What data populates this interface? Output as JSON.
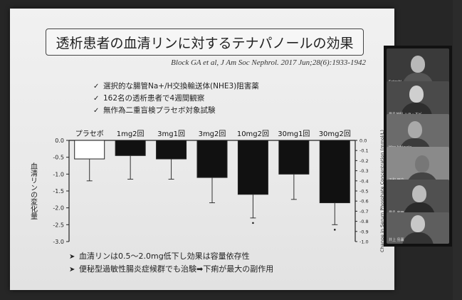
{
  "slide": {
    "title": "透析患者の血清リンに対するテナパノールの効果",
    "citation": "Block GA et al, J Am Soc Nephrol. 2017 Jun;28(6):1933-1942",
    "bullets": [
      "選択的な腸管Na+/H交換輸送体(NHE3)阻害薬",
      "162名の透析患者で4週間観察",
      "無作為二重盲検プラセボ対象試験"
    ],
    "bullet_mark": "✓",
    "notes": [
      "血清リンは0.5～2.0mg低下し効果は容量依存性",
      "便秘型過敏性腸炎症候群でも治験➡下痢が最大の副作用"
    ],
    "note_mark": "➤"
  },
  "chart_data": {
    "type": "bar",
    "categories": [
      "プラセボ",
      "1mg2回",
      "3mg1回",
      "3mg2回",
      "10mg2回",
      "30mg1回",
      "30mg2回"
    ],
    "values": [
      -0.55,
      -0.45,
      -0.55,
      -1.1,
      -1.6,
      -1.0,
      -1.85
    ],
    "error_low": [
      -1.2,
      -1.15,
      -1.15,
      -1.85,
      -2.3,
      -1.75,
      -2.5
    ],
    "bar_fill": [
      "#ffffff",
      "#111111",
      "#111111",
      "#111111",
      "#111111",
      "#111111",
      "#111111"
    ],
    "outlier_markers": [
      false,
      false,
      false,
      false,
      true,
      false,
      true
    ],
    "ylabel": "血清リンの変化量",
    "ylabel_right": "Change in Serum Phosphate Concentration (mmol/L)",
    "ylim": [
      -3.0,
      0.0
    ],
    "yticks": [
      "0.0",
      "-0.5",
      "-1.0",
      "-1.5",
      "-2.0",
      "-2.5",
      "-3.0"
    ],
    "ylim_right": [
      -1.0,
      0.0
    ],
    "yticks_right": [
      "0.0",
      "-0.1",
      "-0.2",
      "-0.3",
      "-0.4",
      "-0.5",
      "-0.6",
      "-0.7",
      "-0.8",
      "-0.9",
      "-1.0"
    ],
    "grid": false,
    "legend": "none"
  },
  "participants": [
    {
      "name": "Satoshi"
    },
    {
      "name": "豊島茂明 ハラ・オビ"
    },
    {
      "name": "Hiro Ishiwata"
    },
    {
      "name": "正和 田中"
    },
    {
      "name": "豊島 安田"
    },
    {
      "name": "井上 島薫"
    }
  ]
}
